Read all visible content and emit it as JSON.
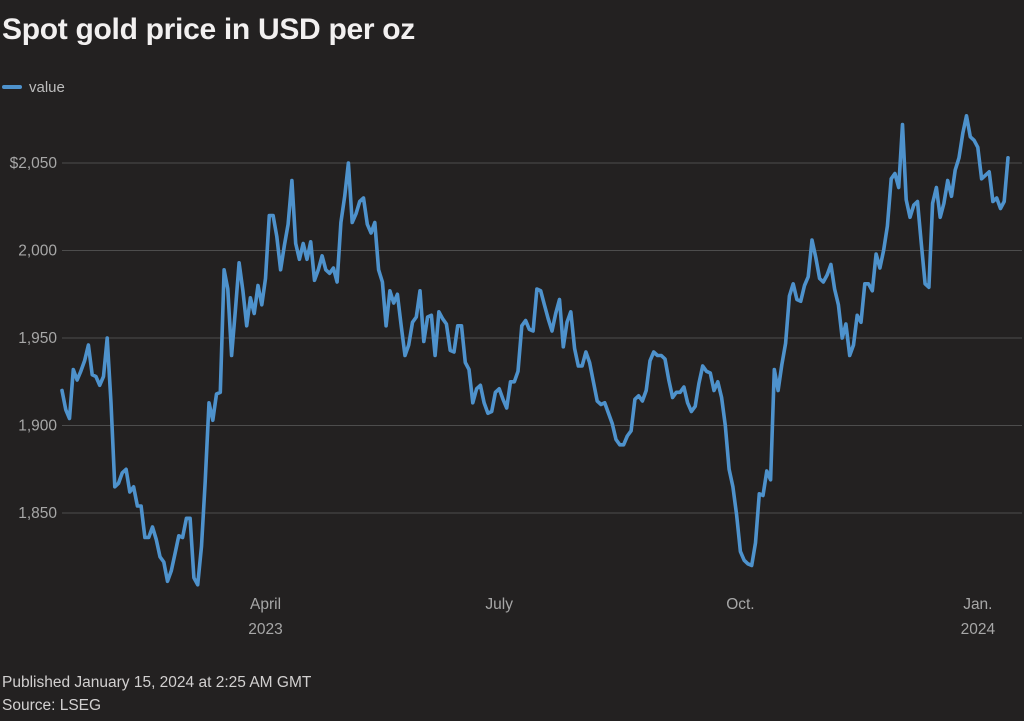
{
  "title": "Spot gold price in USD per oz",
  "legend": {
    "label": "value",
    "swatch_color": "#4e92cc"
  },
  "footer": {
    "published": "Published January 15, 2024 at 2:25 AM GMT",
    "source": "Source: LSEG"
  },
  "colors": {
    "background": "#232121",
    "line": "#4e92cc",
    "gridline": "#4d4d4d",
    "axis_label": "#a7a7a7",
    "title_text": "#f2f0f0",
    "footer_text": "#d2d0d0",
    "legend_text": "#bdbdbd"
  },
  "chart_data": {
    "type": "line",
    "title": "Spot gold price in USD per oz",
    "series_name": "value",
    "unit": "USD per oz",
    "frequency": "daily (consecutive trading days)",
    "start_date": "2023-01-13",
    "end_date": "2024-01-12",
    "points": 252,
    "grid": true,
    "legend_position": "top-left",
    "y_axis": {
      "tick_labels": [
        "$2,050",
        "2,000",
        "1,950",
        "1,900",
        "1,850"
      ],
      "tick_values": [
        2050,
        2000,
        1950,
        1900,
        1850
      ],
      "range": [
        1800,
        2085
      ]
    },
    "x_axis": {
      "ticks": [
        {
          "label": "April",
          "sublabel": "2023",
          "index": 54
        },
        {
          "label": "July",
          "sublabel": "",
          "index": 116
        },
        {
          "label": "Oct.",
          "sublabel": "",
          "index": 180
        },
        {
          "label": "Jan.",
          "sublabel": "2024",
          "index": 243
        }
      ]
    },
    "values": [
      1920,
      1909,
      1904,
      1932,
      1926,
      1931,
      1937,
      1946,
      1929,
      1928,
      1923,
      1928,
      1950,
      1913,
      1865,
      1867,
      1873,
      1875,
      1862,
      1865,
      1854,
      1854,
      1836,
      1836,
      1842,
      1835,
      1825,
      1822,
      1811,
      1817,
      1827,
      1837,
      1836,
      1847,
      1847,
      1813,
      1809,
      1831,
      1868,
      1913,
      1903,
      1918,
      1919,
      1989,
      1978,
      1940,
      1966,
      1993,
      1977,
      1957,
      1973,
      1964,
      1980,
      1969,
      1984,
      2020,
      2020,
      2008,
      1989,
      2003,
      2015,
      2040,
      2004,
      1995,
      2004,
      1995,
      2005,
      1983,
      1989,
      1997,
      1989,
      1987,
      1990,
      1982,
      2016,
      2031,
      2050,
      2016,
      2021,
      2028,
      2030,
      2015,
      2010,
      2016,
      1989,
      1982,
      1957,
      1977,
      1970,
      1975,
      1957,
      1940,
      1946,
      1959,
      1962,
      1977,
      1948,
      1962,
      1963,
      1940,
      1965,
      1961,
      1958,
      1943,
      1942,
      1957,
      1957,
      1936,
      1932,
      1913,
      1921,
      1923,
      1913,
      1907,
      1908,
      1919,
      1921,
      1915,
      1910,
      1925,
      1925,
      1931,
      1957,
      1960,
      1955,
      1954,
      1978,
      1977,
      1969,
      1961,
      1954,
      1964,
      1972,
      1945,
      1959,
      1965,
      1944,
      1934,
      1934,
      1942,
      1936,
      1925,
      1914,
      1912,
      1913,
      1907,
      1901,
      1892,
      1889,
      1889,
      1894,
      1897,
      1915,
      1917,
      1914,
      1920,
      1937,
      1942,
      1940,
      1940,
      1938,
      1926,
      1916,
      1919,
      1919,
      1922,
      1913,
      1908,
      1911,
      1924,
      1934,
      1931,
      1930,
      1920,
      1925,
      1916,
      1900,
      1875,
      1865,
      1849,
      1828,
      1823,
      1821,
      1820,
      1833,
      1861,
      1860,
      1874,
      1869,
      1932,
      1920,
      1935,
      1947,
      1974,
      1981,
      1972,
      1971,
      1980,
      1985,
      2006,
      1996,
      1984,
      1982,
      1986,
      1992,
      1978,
      1969,
      1950,
      1958,
      1940,
      1946,
      1963,
      1959,
      1981,
      1981,
      1977,
      1998,
      1990,
      2000,
      2014,
      2041,
      2044,
      2036,
      2072,
      2029,
      2019,
      2026,
      2028,
      2004,
      1981,
      1979,
      2027,
      2036,
      2019,
      2027,
      2040,
      2031,
      2046,
      2053,
      2067,
      2077,
      2065,
      2063,
      2059,
      2041,
      2043,
      2045,
      2028,
      2030,
      2024,
      2028,
      2053
    ]
  }
}
